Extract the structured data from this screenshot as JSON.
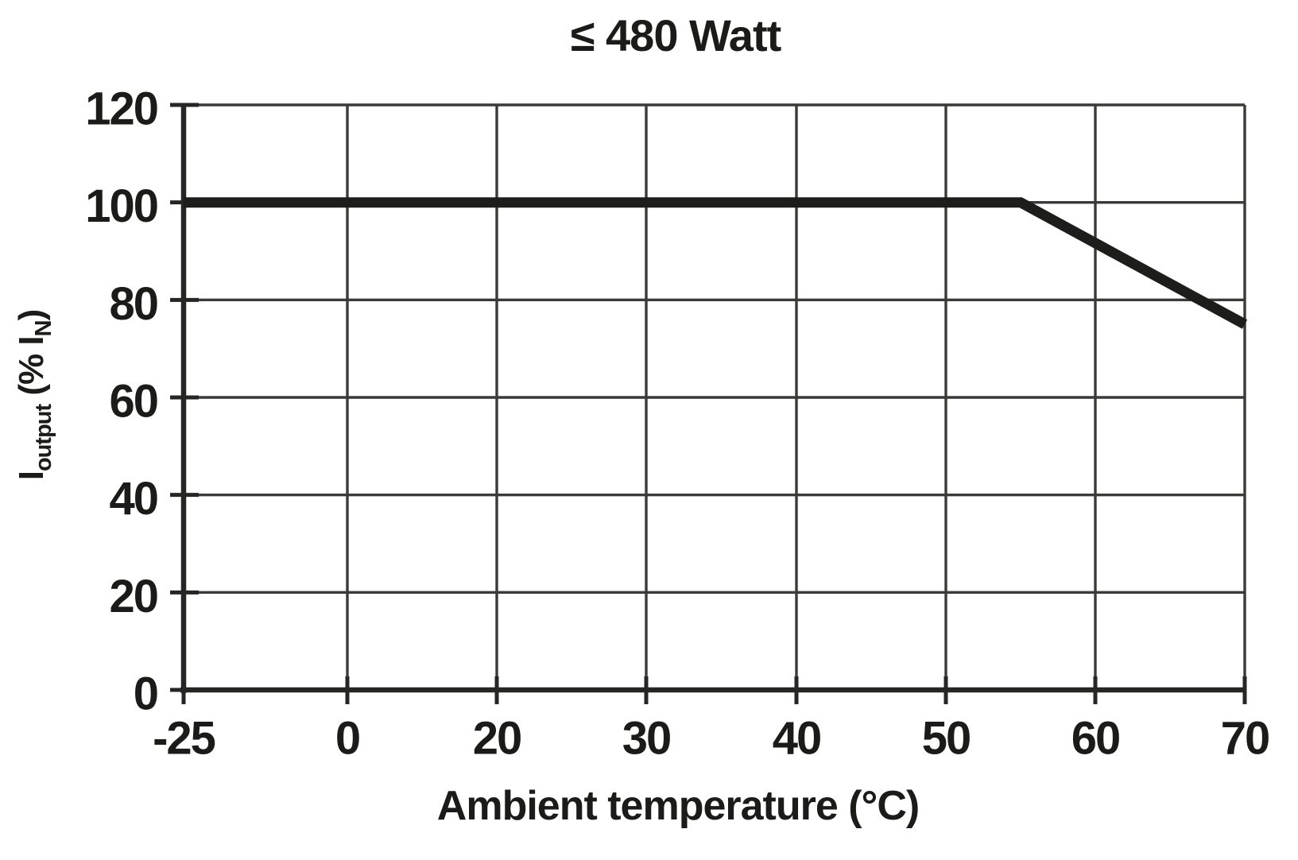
{
  "chart_data": {
    "type": "line",
    "title": "≤ 480 Watt",
    "xlabel": "Ambient temperature (°C)",
    "ylabel": "I_output (% I_N)",
    "ylabel_parts": {
      "main1": "I",
      "sub1": "output",
      "main2": " (% I",
      "sub2": "N",
      "main3": ")"
    },
    "x_tick_labels": [
      "-25",
      "0",
      "20",
      "30",
      "40",
      "50",
      "60",
      "70"
    ],
    "x_tick_values": [
      -25,
      0,
      20,
      30,
      40,
      50,
      60,
      70
    ],
    "y_ticks": [
      0,
      20,
      40,
      60,
      80,
      100,
      120
    ],
    "ylim": [
      0,
      120
    ],
    "grid": true,
    "legend": false,
    "series": [
      {
        "points": [
          {
            "x": -25,
            "y": 100
          },
          {
            "x": 55,
            "y": 100
          },
          {
            "x": 70,
            "y": 75
          }
        ]
      }
    ],
    "colors": {
      "line": "#1d1d1b",
      "grid": "#3a3a39",
      "axis": "#262624",
      "text": "#1b1b19",
      "background": "#ffffff"
    }
  }
}
